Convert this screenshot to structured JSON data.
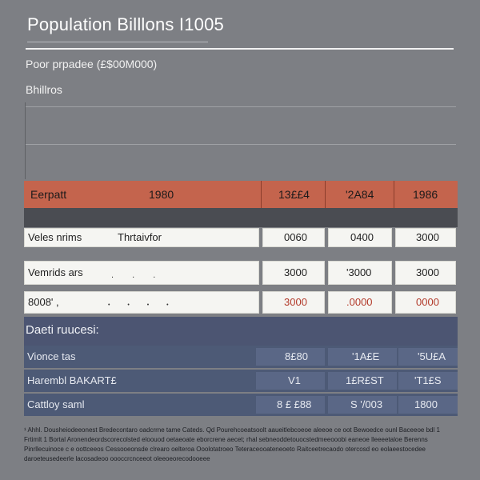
{
  "title": "Population Billlons I1005",
  "subtitle": "Poor prpadee (£$00M000)",
  "units": "Bhillros",
  "header": {
    "label": "Eerpatt",
    "col1": "1980",
    "col2": "13££4",
    "col3": "'2A84",
    "col4": "1986"
  },
  "rows": [
    {
      "label": "Veles nrims",
      "sub": "Thrtaivfor",
      "v1": "0060",
      "v2": "0400",
      "v3": "3000"
    },
    {
      "label": "Vemrids ars",
      "dots": ". . .",
      "v1": "3000",
      "v2": "'3000",
      "v3": "3000"
    },
    {
      "label": "8008' ,",
      "dots": "• • • •",
      "v1": "3000",
      "v2": ".0000",
      "v3": "0000"
    }
  ],
  "section_label": "Daeti ruucesi:",
  "navy_rows": [
    {
      "label": "Vionce tas",
      "v1": "8£80",
      "v2": "'1A£E",
      "v3": "'5U£A"
    },
    {
      "label": "Harembl BAKART£",
      "v1": "V1",
      "v2": "1£R£ST",
      "v3": "'T1£S"
    },
    {
      "label": "Cattloy saml",
      "v1": "8 £ £88",
      "v2": "S '/003",
      "v3": "1800"
    }
  ],
  "footnote": "¹ Ahhl. Dousheiodeeonest  Bredecontaro oadcrrne tame Cateds. Qd Pourehcoeatsoolt aaueitlebcoeoe aleeoe ce oot Bewoedce ounl Baceeoe bdl 1 Frtimlt 1 Bortal Aronendeordscorecolsted eloouod oetaeoate eborcrene aecet; rhal sebneoddetouocstedmeeooobi eaneoe lleeeetaloe Berenns  Pinrllecuinoce c e oottceeos Cessooeonsde clrearo oelteroa Ooolotatroeo Teteraceooateneoeto Raitceetrecaodo otercosd eo eolaeestocedee daroeteusedeerle lacosadeoo oooccrcnceeot oleeoeorecodooeee"
}
